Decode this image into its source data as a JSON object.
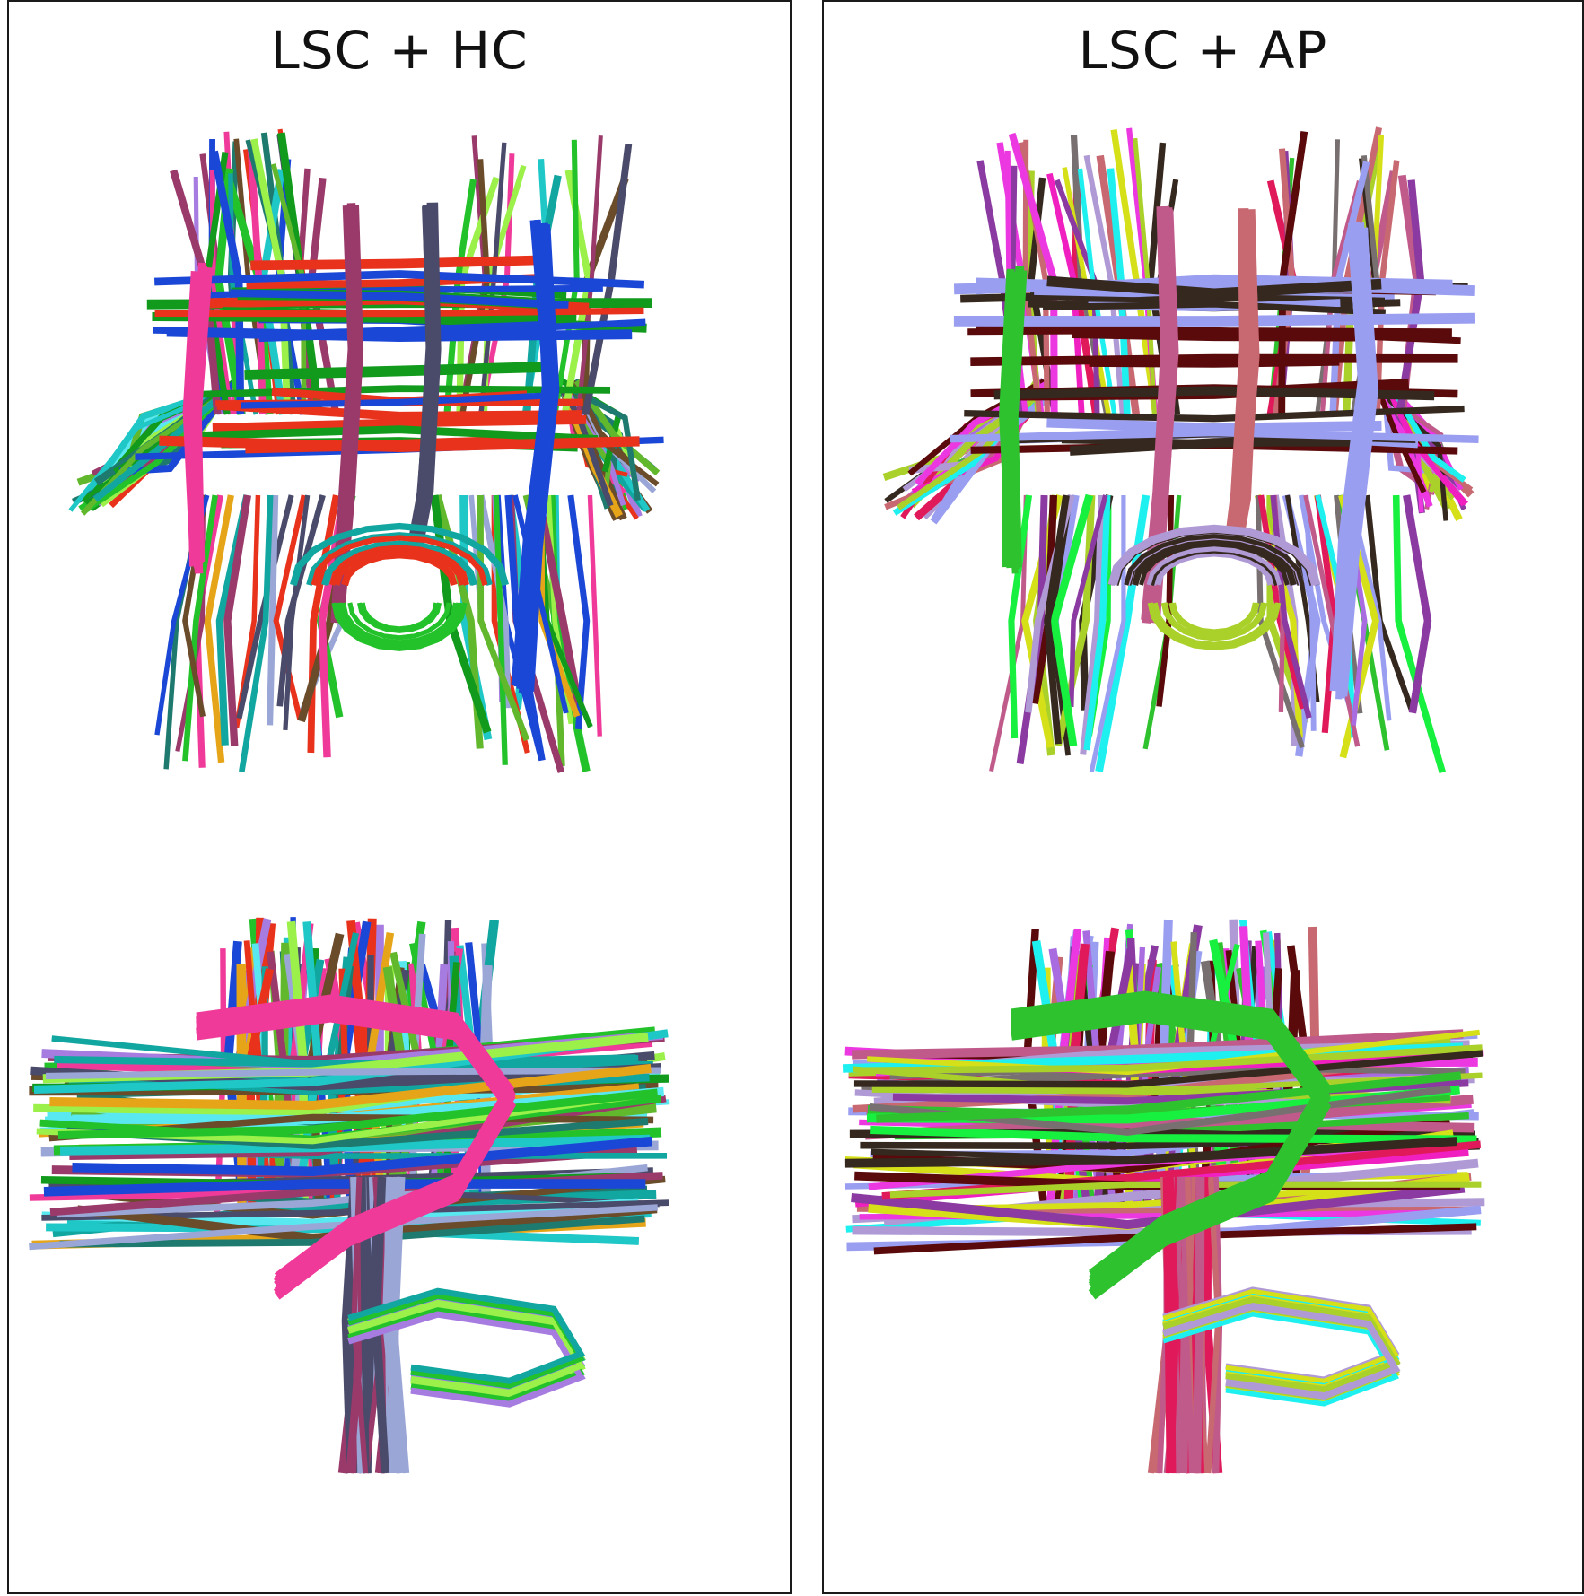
{
  "figure": {
    "panels": [
      {
        "title": "LSC + HC",
        "palette": [
          "#e8321c",
          "#119a1c",
          "#1b47d6",
          "#f03a9a",
          "#62b82c",
          "#e6a518",
          "#9aa7d6",
          "#9a3a6a",
          "#4a4a6a",
          "#1fc7c7",
          "#a77ce0",
          "#9bf04a",
          "#23c22a",
          "#12a6a0",
          "#5ae8f0",
          "#6a4b2a",
          "#1e7a6e"
        ],
        "axial_view": "axial",
        "sagittal_view": "sagittal"
      },
      {
        "title": "LSC + AP",
        "palette": [
          "#35281e",
          "#5a0a0a",
          "#9a9ef0",
          "#2fc22f",
          "#ec38e0",
          "#a86be0",
          "#e01a5a",
          "#c05a8a",
          "#c86870",
          "#787070",
          "#1ef0f0",
          "#d6e018",
          "#aad02a",
          "#b09ad6",
          "#f020c0",
          "#18f040",
          "#8a3aa0"
        ],
        "axial_view": "axial",
        "sagittal_view": "sagittal"
      }
    ]
  }
}
